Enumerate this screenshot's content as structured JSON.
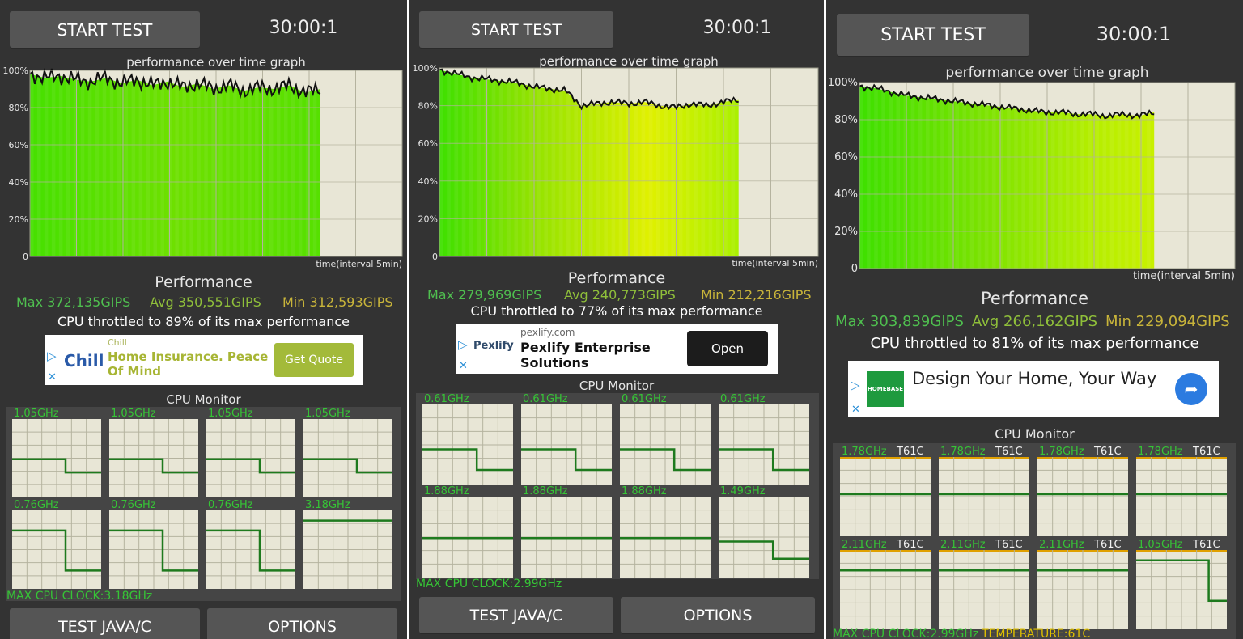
{
  "panels": [
    {
      "start_label": "START TEST",
      "timer": "30:00:1",
      "graph_title": "performance over time graph",
      "y_ticks": [
        "100%",
        "80%",
        "60%",
        "40%",
        "20%",
        "0"
      ],
      "x_label": "time(interval 5min)",
      "perf_label": "Performance",
      "max": "Max 372,135GIPS",
      "avg": "Avg 350,551GIPS",
      "min": "Min 312,593GIPS",
      "throttle": "CPU throttled to 89% of its max performance",
      "ad": {
        "brand": "Chill",
        "small": "Chill",
        "headline": "Home Insurance. Peace Of Mind",
        "cta": "Get Quote"
      },
      "cpu_monitor_label": "CPU Monitor",
      "cores": [
        {
          "freq": "1.05GHz",
          "level": [
            0.55,
            0.55,
            0.55,
            0.35,
            0.35
          ]
        },
        {
          "freq": "1.05GHz",
          "level": [
            0.55,
            0.55,
            0.55,
            0.35,
            0.35
          ]
        },
        {
          "freq": "1.05GHz",
          "level": [
            0.55,
            0.55,
            0.55,
            0.35,
            0.35
          ]
        },
        {
          "freq": "1.05GHz",
          "level": [
            0.55,
            0.55,
            0.55,
            0.35,
            0.35
          ]
        },
        {
          "freq": "0.76GHz",
          "level": [
            0.85,
            0.85,
            0.85,
            0.25,
            0.25
          ]
        },
        {
          "freq": "0.76GHz",
          "level": [
            0.85,
            0.85,
            0.85,
            0.25,
            0.25
          ]
        },
        {
          "freq": "0.76GHz",
          "level": [
            0.85,
            0.85,
            0.85,
            0.25,
            0.25
          ]
        },
        {
          "freq": "3.18GHz",
          "level": [
            1.0,
            1.0,
            1.0,
            1.0,
            1.0
          ]
        }
      ],
      "max_clock": "MAX CPU CLOCK:3.18GHz",
      "test_label": "TEST JAVA/C",
      "options_label": "OPTIONS",
      "perf_series": [
        98,
        96,
        97,
        95,
        94,
        96,
        93,
        95,
        92,
        94,
        91,
        93,
        90,
        92,
        89,
        91,
        90,
        92,
        88,
        90
      ]
    },
    {
      "start_label": "START TEST",
      "timer": "30:00:1",
      "graph_title": "performance over time graph",
      "y_ticks": [
        "100%",
        "80%",
        "60%",
        "40%",
        "20%",
        "0"
      ],
      "x_label": "time(interval 5min)",
      "perf_label": "Performance",
      "max": "Max 279,969GIPS",
      "avg": "Avg 240,773GIPS",
      "min": "Min 212,216GIPS",
      "throttle": "CPU throttled to 77% of its max performance",
      "ad": {
        "brand": "Pexlify",
        "small": "pexlify.com",
        "headline": "Pexlify Enterprise Solutions",
        "cta": "Open"
      },
      "cpu_monitor_label": "CPU Monitor",
      "cores": [
        {
          "freq": "0.61GHz",
          "level": [
            0.5,
            0.5,
            0.5,
            0.2,
            0.2
          ]
        },
        {
          "freq": "0.61GHz",
          "level": [
            0.5,
            0.5,
            0.5,
            0.2,
            0.2
          ]
        },
        {
          "freq": "0.61GHz",
          "level": [
            0.5,
            0.5,
            0.5,
            0.2,
            0.2
          ]
        },
        {
          "freq": "0.61GHz",
          "level": [
            0.5,
            0.5,
            0.5,
            0.2,
            0.2
          ]
        },
        {
          "freq": "1.88GHz",
          "level": [
            0.55,
            0.55,
            0.55,
            0.55,
            0.55
          ]
        },
        {
          "freq": "1.88GHz",
          "level": [
            0.55,
            0.55,
            0.55,
            0.55,
            0.55
          ]
        },
        {
          "freq": "1.88GHz",
          "level": [
            0.55,
            0.55,
            0.55,
            0.55,
            0.55
          ]
        },
        {
          "freq": "1.49GHz",
          "level": [
            0.5,
            0.5,
            0.5,
            0.25,
            0.25
          ]
        }
      ],
      "max_clock": "MAX CPU CLOCK:2.99GHz",
      "test_label": "TEST JAVA/C",
      "options_label": "OPTIONS",
      "perf_series": [
        99,
        97,
        95,
        94,
        93,
        92,
        90,
        89,
        88,
        80,
        81,
        82,
        81,
        82,
        80,
        79,
        81,
        80,
        82,
        83
      ]
    },
    {
      "start_label": "START TEST",
      "timer": "30:00:1",
      "graph_title": "performance over time graph",
      "y_ticks": [
        "100%",
        "80%",
        "60%",
        "40%",
        "20%",
        "0"
      ],
      "x_label": "time(interval 5min)",
      "perf_label": "Performance",
      "max": "Max 303,839GIPS",
      "avg": "Avg 266,162GIPS",
      "min": "Min 229,094GIPS",
      "throttle": "CPU throttled to 81% of its max performance",
      "ad": {
        "brand": "HOMEBASE",
        "small": "",
        "headline": "Design Your Home, Your Way",
        "cta": ""
      },
      "cpu_monitor_label": "CPU Monitor",
      "cores": [
        {
          "freq": "1.78GHz",
          "temp": "T61C",
          "level": [
            0.6,
            0.6,
            0.6,
            0.6,
            0.6
          ]
        },
        {
          "freq": "1.78GHz",
          "temp": "T61C",
          "level": [
            0.6,
            0.6,
            0.6,
            0.6,
            0.6
          ]
        },
        {
          "freq": "1.78GHz",
          "temp": "T61C",
          "level": [
            0.6,
            0.6,
            0.6,
            0.6,
            0.6
          ]
        },
        {
          "freq": "1.78GHz",
          "temp": "T61C",
          "level": [
            0.6,
            0.6,
            0.6,
            0.6,
            0.6
          ]
        },
        {
          "freq": "2.11GHz",
          "temp": "T61C",
          "level": [
            0.85,
            0.85,
            0.85,
            0.85,
            0.85
          ]
        },
        {
          "freq": "2.11GHz",
          "temp": "T61C",
          "level": [
            0.85,
            0.85,
            0.85,
            0.85,
            0.85
          ]
        },
        {
          "freq": "2.11GHz",
          "temp": "T61C",
          "level": [
            0.85,
            0.85,
            0.85,
            0.85,
            0.85
          ]
        },
        {
          "freq": "1.05GHz",
          "temp": "T61C",
          "level": [
            1.0,
            1.0,
            1.0,
            1.0,
            0.4
          ]
        }
      ],
      "max_clock": "MAX CPU CLOCK:2.99GHz",
      "temperature": "TEMPERATURE:61C",
      "test_label": "",
      "options_label": "",
      "perf_series": [
        98,
        97,
        95,
        93,
        92,
        91,
        90,
        89,
        88,
        87,
        86,
        85,
        84,
        84,
        83,
        83,
        82,
        83,
        82,
        84
      ]
    }
  ],
  "colors": {
    "background": "#333333",
    "button": "#555555",
    "graph_bg": "#e8e6d6",
    "grid": "#b5b39f",
    "max_color": "#4fbf4f",
    "avg_color": "#8fbf3a",
    "min_color": "#c8b43a",
    "core_line": "#1e7a1e",
    "core_freq": "#36c436"
  }
}
